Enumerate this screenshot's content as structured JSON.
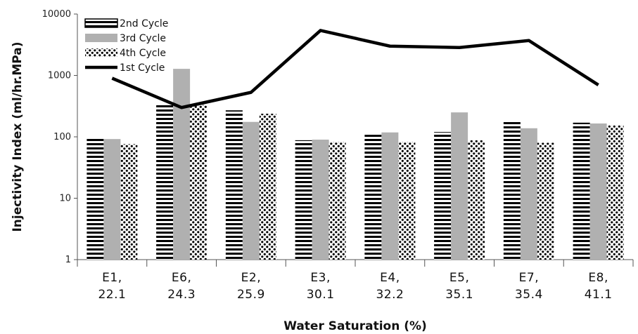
{
  "chart_data": {
    "type": "bar",
    "xlabel": "Water Saturation (%)",
    "ylabel": "Injectivity Index (ml/hr.MPa)",
    "y_scale": "log",
    "ylim": [
      1,
      10000
    ],
    "y_ticks": [
      "1",
      "10",
      "100",
      "1000",
      "10000"
    ],
    "categories": [
      [
        "E1,",
        "22.1"
      ],
      [
        "E6,",
        "24.3"
      ],
      [
        "E2,",
        "25.9"
      ],
      [
        "E3,",
        "30.1"
      ],
      [
        "E4,",
        "32.2"
      ],
      [
        "E5,",
        "35.1"
      ],
      [
        "E7,",
        "35.4"
      ],
      [
        "E8,",
        "41.1"
      ]
    ],
    "series": [
      {
        "name": "2nd Cycle",
        "type": "bar",
        "pattern": "horizontal-stripes",
        "values": [
          96,
          350,
          270,
          88,
          108,
          120,
          180,
          170
        ]
      },
      {
        "name": "3rd Cycle",
        "type": "bar",
        "pattern": "solid-gray",
        "color": "#b0b0b0",
        "values": [
          92,
          1280,
          175,
          90,
          118,
          250,
          138,
          165
        ]
      },
      {
        "name": "4th Cycle",
        "type": "bar",
        "pattern": "dots",
        "values": [
          76,
          330,
          238,
          82,
          82,
          88,
          80,
          155
        ]
      },
      {
        "name": "1st Cycle",
        "type": "line",
        "color": "#000000",
        "values": [
          900,
          300,
          530,
          5400,
          3000,
          2850,
          3700,
          700
        ]
      }
    ],
    "legend_position": "top-left",
    "grid": false
  }
}
